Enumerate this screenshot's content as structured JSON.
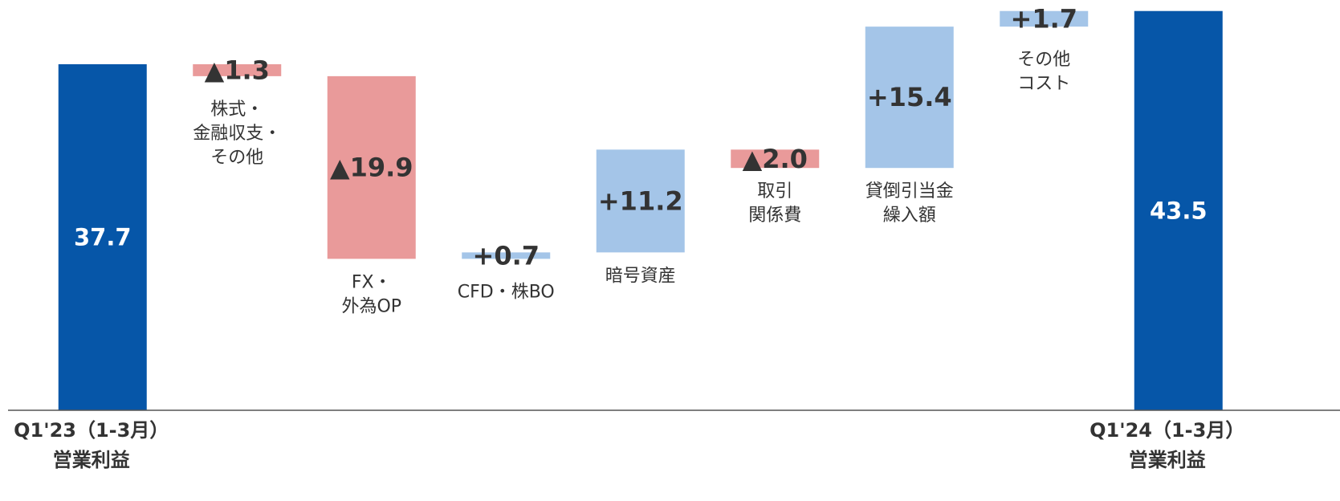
{
  "chart_data": {
    "type": "waterfall",
    "categories": [
      [
        "Q1'23（1-3月）",
        "営業利益"
      ],
      [
        "株式・",
        "金融収支・",
        "その他"
      ],
      [
        "FX・",
        "外為OP"
      ],
      [
        "CFD・株BO"
      ],
      [
        "暗号資産"
      ],
      [
        "取引",
        "関係費"
      ],
      [
        "貸倒引当金",
        "繰入額"
      ],
      [
        "その他",
        "コスト"
      ],
      [
        "Q1'24（1-3月）",
        "営業利益"
      ]
    ],
    "kinds": [
      "total",
      "delta",
      "delta",
      "delta",
      "delta",
      "delta",
      "delta",
      "delta",
      "total"
    ],
    "values": [
      37.7,
      -1.3,
      -19.9,
      0.7,
      11.2,
      -2.0,
      15.4,
      1.7,
      43.5
    ],
    "value_labels": [
      "37.7",
      "▲1.3",
      "▲19.9",
      "+0.7",
      "+11.2",
      "▲2.0",
      "+15.4",
      "+1.7",
      "43.5"
    ],
    "colors": {
      "total": "#0656a8",
      "increase": "#a4c5e8",
      "decrease": "#e99a9a"
    },
    "ylim": [
      0,
      44
    ]
  }
}
